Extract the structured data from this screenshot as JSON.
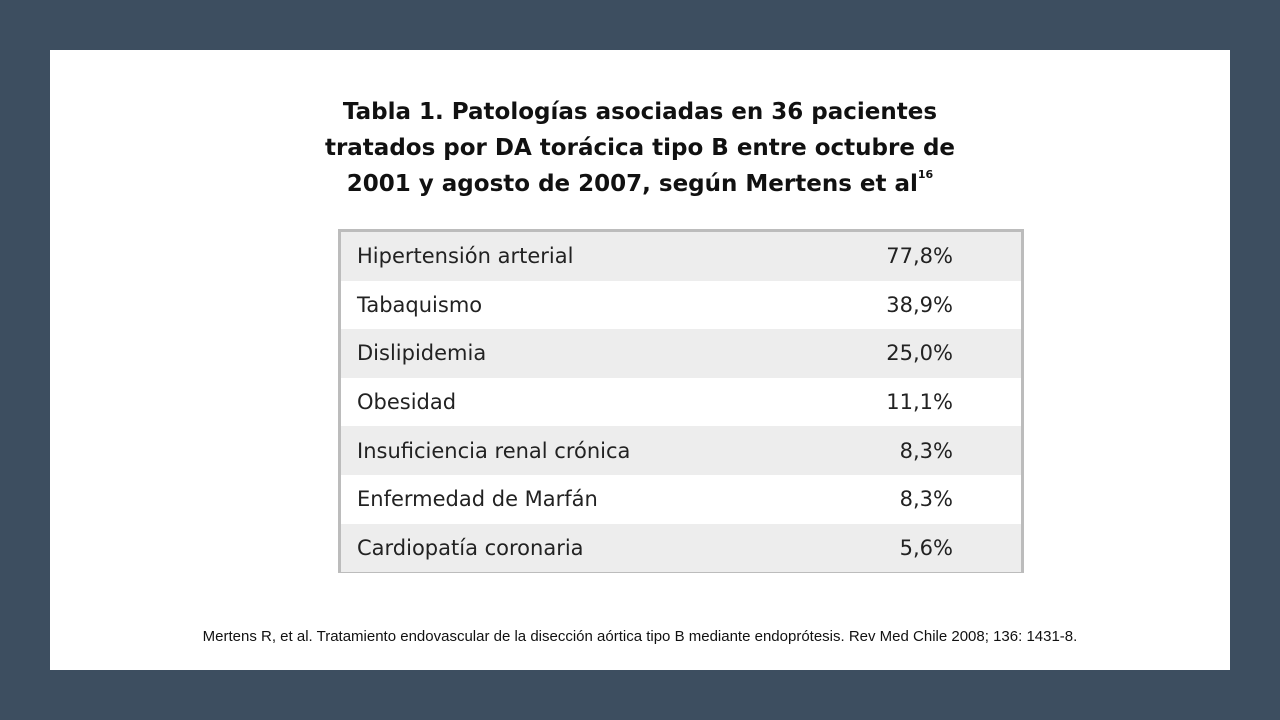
{
  "title": {
    "line1": "Tabla 1. Patologías asociadas en 36 pacientes",
    "line2": "tratados por DA torácica tipo B entre octubre de",
    "line3": "2001 y agosto de 2007, según Mertens et al",
    "superscript": "16"
  },
  "table": {
    "rows": [
      {
        "label": "Hipertensión arterial",
        "value": "77,8%"
      },
      {
        "label": "Tabaquismo",
        "value": "38,9%"
      },
      {
        "label": "Dislipidemia",
        "value": "25,0%"
      },
      {
        "label": "Obesidad",
        "value": "11,1%"
      },
      {
        "label": "Insuficiencia renal crónica",
        "value": "8,3%"
      },
      {
        "label": "Enfermedad de Marfán",
        "value": "8,3%"
      },
      {
        "label": "Cardiopatía coronaria",
        "value": "5,6%"
      }
    ]
  },
  "citation": "Mertens R, et al. Tratamiento endovascular de la disección aórtica tipo B mediante endoprótesis. Rev Med Chile 2008; 136: 1431-8.",
  "colors": {
    "background": "#3d4e60",
    "slide": "#ffffff",
    "row_shade": "#ededed",
    "table_border": "#bcbcbc"
  }
}
